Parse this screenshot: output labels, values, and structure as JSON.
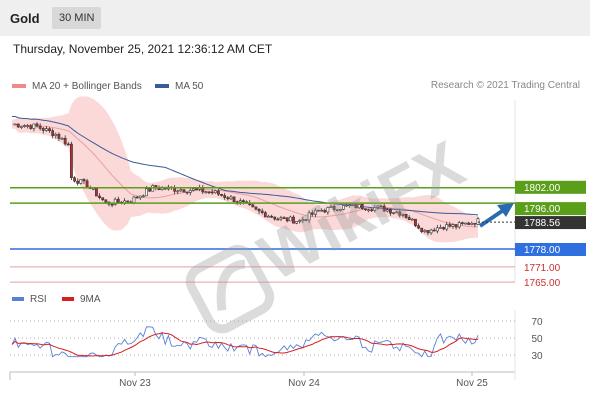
{
  "header": {
    "title": "Gold",
    "timeframe": "30 MIN"
  },
  "timestamp": "Thursday, November 25, 2021 12:36:12 AM CET",
  "legend": {
    "bollinger": {
      "label": "MA 20 + Bollinger Bands",
      "color": "#ef8a8a"
    },
    "ma50": {
      "label": "MA 50",
      "color": "#3a5a9a"
    }
  },
  "credit": "Research © 2021 Trading Central",
  "rsi_legend": {
    "rsi": {
      "label": "RSI",
      "color": "#5b7fd6"
    },
    "ma": {
      "label": "9MA",
      "color": "#d62020"
    }
  },
  "watermark": "WikiFX",
  "chart_data": [
    {
      "type": "candlestick",
      "title": "Gold",
      "x_ticks": [
        "Nov 23",
        "Nov 24",
        "Nov 25"
      ],
      "ylim": [
        1758,
        1830
      ],
      "current_price": {
        "label": "1788.56",
        "value": 1788.56
      },
      "levels": [
        {
          "label": "1802.00",
          "value": 1802,
          "kind": "resistance"
        },
        {
          "label": "1796.00",
          "value": 1796,
          "kind": "resistance"
        },
        {
          "label": "1778.00",
          "value": 1778,
          "kind": "pivot"
        },
        {
          "label": "1771.00",
          "value": 1771,
          "kind": "support"
        },
        {
          "label": "1765.00",
          "value": 1765,
          "kind": "support"
        }
      ],
      "series": [
        {
          "name": "MA 20 + Bollinger Bands"
        },
        {
          "name": "MA 50"
        }
      ]
    },
    {
      "type": "line",
      "title": "RSI",
      "ylim": [
        20,
        80
      ],
      "y_ticks": [
        "70",
        "50",
        "30"
      ],
      "series": [
        {
          "name": "RSI"
        },
        {
          "name": "9MA"
        }
      ]
    }
  ],
  "colors": {
    "resistance": "#5a9e1a",
    "pivot": "#2f6fe0",
    "support": "#e0a0a0",
    "support_text": "#c83030",
    "price_tag": "#333333",
    "up": "#ffffff",
    "down": "#b03030",
    "band": "#fbd5d5",
    "arrow": "#2a6ab0"
  }
}
